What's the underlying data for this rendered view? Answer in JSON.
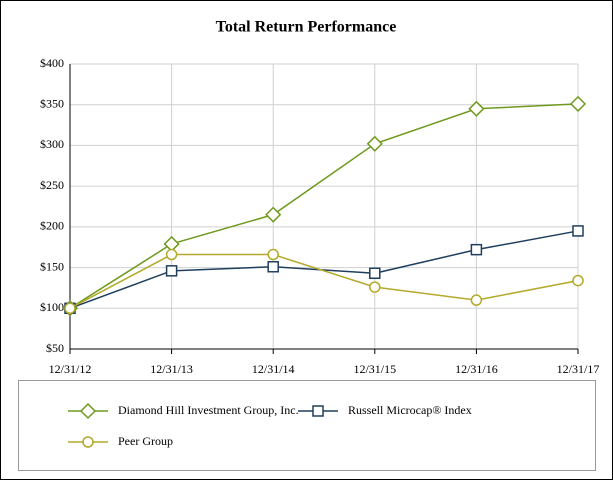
{
  "chart_data": {
    "type": "line",
    "title": "Total Return Performance",
    "categories": [
      "12/31/12",
      "12/31/13",
      "12/31/14",
      "12/31/15",
      "12/31/16",
      "12/31/17"
    ],
    "series": [
      {
        "name": "Diamond Hill Investment Group, Inc.",
        "color": "#6e9a1e",
        "marker": "diamond",
        "values": [
          100,
          179,
          215,
          302,
          345,
          351
        ]
      },
      {
        "name": "Russell Microcap® Index",
        "color": "#1f3f5f",
        "marker": "square",
        "values": [
          100,
          146,
          151,
          143,
          172,
          195
        ]
      },
      {
        "name": "Peer Group",
        "color": "#b3a92a",
        "marker": "circle",
        "values": [
          100,
          166,
          166,
          126,
          110,
          134
        ]
      }
    ],
    "ylim": [
      50,
      400
    ],
    "yticks": [
      {
        "value": 50,
        "label": "$50"
      },
      {
        "value": 100,
        "label": "$100"
      },
      {
        "value": 150,
        "label": "$150"
      },
      {
        "value": 200,
        "label": "$200"
      },
      {
        "value": 250,
        "label": "$250"
      },
      {
        "value": 300,
        "label": "$300"
      },
      {
        "value": 350,
        "label": "$350"
      },
      {
        "value": 400,
        "label": "$400"
      }
    ],
    "grid": true
  }
}
